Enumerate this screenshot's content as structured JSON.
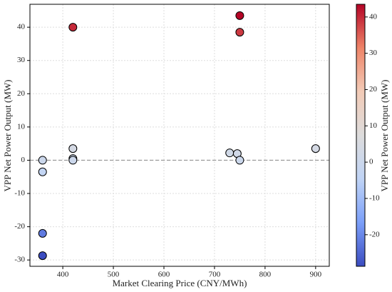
{
  "chart_data": {
    "type": "scatter",
    "x_label": "Market Clearing Price (CNY/MWh)",
    "y_label": "VPP Net Power Output (MW)",
    "colorbar_label": "VPP Net Power Output (MW)",
    "x": [
      360,
      360,
      360,
      360,
      420,
      420,
      420,
      420,
      730,
      745,
      750,
      750,
      750,
      900
    ],
    "values": [
      0,
      -3.5,
      -22,
      -28.7,
      40,
      3.5,
      0.5,
      0,
      2.2,
      2,
      0,
      38.5,
      43.5,
      3.5
    ],
    "xlim": [
      335,
      927
    ],
    "xticks": [
      400,
      500,
      600,
      700,
      800,
      900
    ],
    "ylim": [
      -31.9,
      46.9
    ],
    "yticks": [
      -30,
      -20,
      -10,
      0,
      10,
      20,
      30,
      40
    ],
    "clim": [
      -28.7,
      43.5
    ],
    "cticks": [
      -20,
      -10,
      0,
      10,
      20,
      30,
      40
    ],
    "colormap": [
      "#3b4cc0",
      "#7b9ff9",
      "#c0d4f5",
      "#dddcdc",
      "#f2cbb7",
      "#ee8468",
      "#b40426"
    ],
    "hline": 0,
    "grid": true
  }
}
